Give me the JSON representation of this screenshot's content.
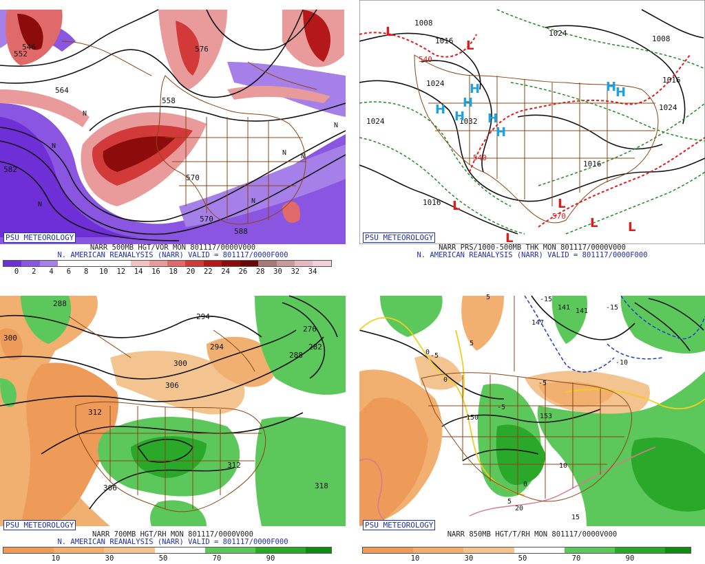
{
  "panels": [
    {
      "id": "vort500",
      "logo": "PSU METEOROLOGY",
      "title": "NARR 500MB HGT/VOR MON 801117/0000V000",
      "subtitle": "N. AMERICAN REANALYSIS (NARR) VALID = 801117/0000F000",
      "colorbar": {
        "colors": [
          "#6e2fd6",
          "#8a55e0",
          "#a580e8",
          "#ffffff",
          "#ffffff",
          "#ffffff",
          "#ffffff",
          "#f3c3c3",
          "#e99a9a",
          "#e06a6a",
          "#d23a3a",
          "#b51818",
          "#8c0b0b",
          "#6a0808",
          "#a87878",
          "#c99a9a",
          "#e8b8c0",
          "#f4d0d8"
        ],
        "ticks": [
          "0",
          "2",
          "4",
          "6",
          "8",
          "10",
          "12",
          "14",
          "16",
          "18",
          "20",
          "22",
          "24",
          "26",
          "28",
          "30",
          "32",
          "34"
        ]
      },
      "contour_labels": [
        "552",
        "546",
        "576",
        "558",
        "582",
        "570",
        "570",
        "564",
        "588"
      ],
      "marks": [
        "N",
        "N",
        "N",
        "N",
        "N",
        "N",
        "N"
      ]
    },
    {
      "id": "prs_thk",
      "logo": "PSU METEOROLOGY",
      "title": "NARR PRS/1000-500MB THK MON 801117/0000V000",
      "subtitle": "N. AMERICAN REANALYSIS (NARR) VALID = 801117/0000F000",
      "contour_labels": [
        "1008",
        "1016",
        "1024",
        "1024",
        "1032",
        "1024",
        "1016",
        "1016",
        "1024",
        "1016",
        "1008",
        "540",
        "540",
        "570"
      ],
      "highs": [
        "H",
        "H",
        "H",
        "H",
        "H",
        "H",
        "H",
        "H"
      ],
      "lows": [
        "L",
        "L",
        "L",
        "L",
        "L",
        "L",
        "L"
      ]
    },
    {
      "id": "hgt_rh700",
      "logo": "PSU METEOROLOGY",
      "title": "NARR 700MB HGT/RH MON 801117/0000V000",
      "subtitle": "N. AMERICAN REANALYSIS (NARR) VALID = 801117/0000F000",
      "colorbar": {
        "colors": [
          "#ee9a58",
          "#ee9a58",
          "#f2b070",
          "#f2b070",
          "#f4c490",
          "#f4c490",
          "#ffffff",
          "#ffffff",
          "#5cc85c",
          "#5cc85c",
          "#2aa82a",
          "#2aa82a",
          "#128a12"
        ],
        "ticks": [
          "10",
          "30",
          "50",
          "70",
          "90"
        ]
      },
      "contour_labels": [
        "288",
        "300",
        "294",
        "288",
        "276",
        "282",
        "294",
        "306",
        "312",
        "300",
        "306",
        "318",
        "312"
      ]
    },
    {
      "id": "hgt_t_rh850",
      "logo": "PSU METEOROLOGY",
      "title": "NARR 850MB HGT/T/RH MON 801117/0000V000",
      "colorbar": {
        "colors": [
          "#ee9a58",
          "#ee9a58",
          "#f2b070",
          "#f2b070",
          "#f4c490",
          "#f4c490",
          "#ffffff",
          "#ffffff",
          "#5cc85c",
          "#5cc85c",
          "#2aa82a",
          "#2aa82a",
          "#128a12"
        ],
        "ticks": [
          "10",
          "30",
          "50",
          "70",
          "90"
        ]
      },
      "contour_labels": [
        "141",
        "-15",
        "-15",
        "-10",
        "-5",
        "5",
        "5",
        "0",
        "0",
        "-5",
        "150",
        "153",
        "-5",
        "0",
        "5",
        "10",
        "15",
        "20",
        "147",
        "141"
      ]
    }
  ],
  "colors": {
    "logo_blue": "#1c2fb0",
    "map_brown": "#8b4513",
    "red_dash": "#e21a1a",
    "green_dash": "#1f8a1f",
    "high_cyan": "#1aa3e0",
    "temp_yellow": "#f2cf1e",
    "temp_blue": "#1e3cc8"
  }
}
